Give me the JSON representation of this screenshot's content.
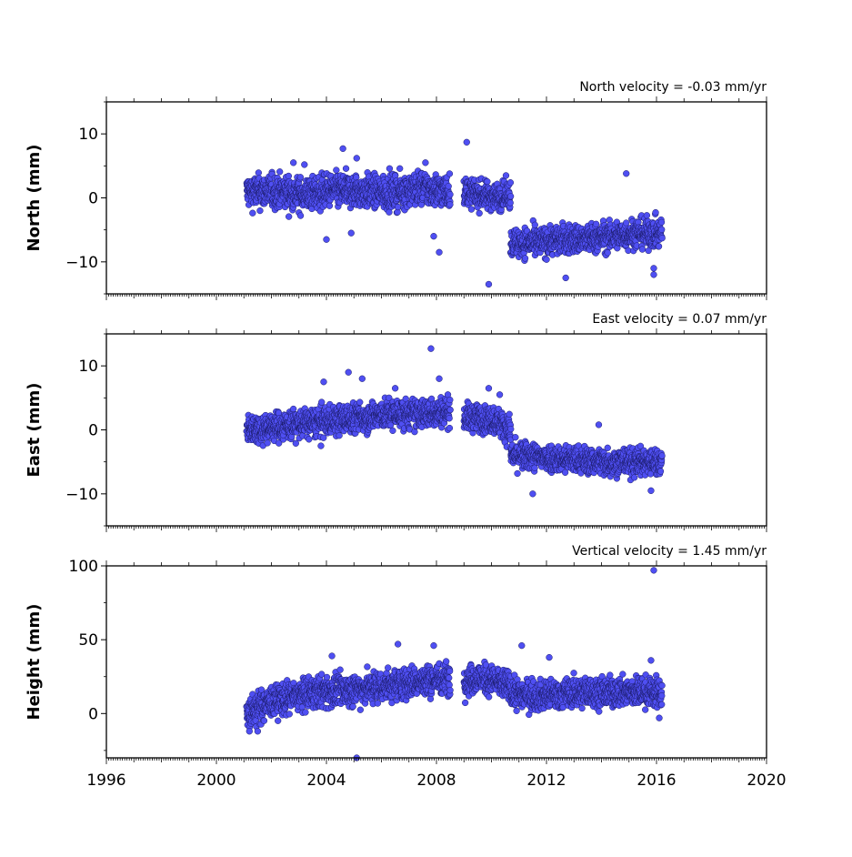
{
  "chart_data": [
    {
      "type": "scatter",
      "title": "North velocity = -0.03 mm/yr",
      "ylabel": "North (mm)",
      "xlim": [
        1996,
        2020
      ],
      "ylim": [
        -15,
        15
      ],
      "yticks": [
        10,
        0,
        -10
      ],
      "ytick_labels": [
        "10",
        "0",
        "−10"
      ],
      "marker_color": "#4f4ff2",
      "segments": [
        {
          "x": [
            2001.1,
            2008.5
          ],
          "level": [
            1.0,
            1.0,
            0.5,
            1.2,
            1.0,
            0.8,
            1.5,
            1.0
          ],
          "spread": 1.7
        },
        {
          "x": [
            2009.0,
            2010.7
          ],
          "level": [
            1.0,
            0.5,
            0.2,
            0.5
          ],
          "spread": 1.4
        },
        {
          "x": [
            2010.7,
            2016.2
          ],
          "level": [
            -7.0,
            -7.0,
            -6.5,
            -6.5,
            -6.0,
            -5.5,
            -5.5
          ],
          "spread": 1.5
        }
      ],
      "outliers": [
        {
          "x": 2002.8,
          "y": 5.5
        },
        {
          "x": 2003.2,
          "y": 5.2
        },
        {
          "x": 2004.0,
          "y": -6.5
        },
        {
          "x": 2004.6,
          "y": 7.7
        },
        {
          "x": 2004.9,
          "y": -5.5
        },
        {
          "x": 2005.1,
          "y": 6.2
        },
        {
          "x": 2007.6,
          "y": 5.5
        },
        {
          "x": 2008.1,
          "y": -8.5
        },
        {
          "x": 2007.9,
          "y": -6.0
        },
        {
          "x": 2009.1,
          "y": 8.7
        },
        {
          "x": 2009.9,
          "y": -13.5
        },
        {
          "x": 2012.7,
          "y": -12.5
        },
        {
          "x": 2014.9,
          "y": 3.8
        },
        {
          "x": 2015.9,
          "y": -12.0
        },
        {
          "x": 2015.9,
          "y": -11.0
        }
      ]
    },
    {
      "type": "scatter",
      "title": "East velocity = 0.07 mm/yr",
      "ylabel": "East (mm)",
      "xlim": [
        1996,
        2020
      ],
      "ylim": [
        -15,
        15
      ],
      "yticks": [
        10,
        0,
        -10
      ],
      "ytick_labels": [
        "10",
        "0",
        "−10"
      ],
      "marker_color": "#4f4ff2",
      "segments": [
        {
          "x": [
            2001.1,
            2008.5
          ],
          "level": [
            0.0,
            0.5,
            1.0,
            1.5,
            2.0,
            2.5,
            2.5,
            3.0
          ],
          "spread": 1.5
        },
        {
          "x": [
            2009.0,
            2010.7
          ],
          "level": [
            2.0,
            1.8,
            1.5,
            0.0
          ],
          "spread": 1.4
        },
        {
          "x": [
            2010.7,
            2016.2
          ],
          "level": [
            -4.0,
            -4.2,
            -4.5,
            -4.8,
            -5.0,
            -5.0,
            -5.0
          ],
          "spread": 1.4
        }
      ],
      "outliers": [
        {
          "x": 2007.8,
          "y": 12.7
        },
        {
          "x": 2004.8,
          "y": 9.0
        },
        {
          "x": 2005.3,
          "y": 8.0
        },
        {
          "x": 2008.1,
          "y": 8.0
        },
        {
          "x": 2003.9,
          "y": 7.5
        },
        {
          "x": 2009.9,
          "y": 6.5
        },
        {
          "x": 2010.3,
          "y": 5.5
        },
        {
          "x": 2011.5,
          "y": -10.0
        },
        {
          "x": 2015.8,
          "y": -9.5
        },
        {
          "x": 2013.9,
          "y": 0.8
        },
        {
          "x": 2003.8,
          "y": -2.5
        },
        {
          "x": 2006.5,
          "y": 6.5
        }
      ]
    },
    {
      "type": "scatter",
      "title": "Vertical velocity = 1.45 mm/yr",
      "ylabel": "Height (mm)",
      "xlim": [
        1996,
        2020
      ],
      "ylim": [
        -30,
        100
      ],
      "yticks": [
        100,
        50,
        0
      ],
      "ytick_labels": [
        "100",
        "50",
        "0"
      ],
      "xticks": [
        1996,
        2000,
        2004,
        2008,
        2012,
        2016,
        2020
      ],
      "xtick_labels": [
        "1996",
        "2000",
        "2004",
        "2008",
        "2012",
        "2016",
        "2020"
      ],
      "marker_color": "#4f4ff2",
      "segments": [
        {
          "x": [
            2001.1,
            2008.5
          ],
          "level": [
            0.0,
            8.0,
            12.0,
            15.0,
            16.0,
            18.0,
            20.0,
            22.0,
            24.0
          ],
          "spread": 7.0
        },
        {
          "x": [
            2009.0,
            2010.7
          ],
          "level": [
            22.0,
            24.0,
            22.0,
            18.0
          ],
          "spread": 6.5
        },
        {
          "x": [
            2010.7,
            2016.2
          ],
          "level": [
            14.0,
            12.0,
            13.0,
            15.0,
            14.0,
            15.0,
            14.0
          ],
          "spread": 6.5
        }
      ],
      "outliers": [
        {
          "x": 2015.9,
          "y": 97.0
        },
        {
          "x": 2004.2,
          "y": 39.0
        },
        {
          "x": 2006.6,
          "y": 47.0
        },
        {
          "x": 2007.9,
          "y": 46.0
        },
        {
          "x": 2011.1,
          "y": 46.0
        },
        {
          "x": 2001.5,
          "y": -12.0
        },
        {
          "x": 2001.2,
          "y": -12.0
        },
        {
          "x": 2005.1,
          "y": -30.0
        },
        {
          "x": 2012.1,
          "y": 38.0
        },
        {
          "x": 2015.8,
          "y": 36.0
        },
        {
          "x": 2016.1,
          "y": -3.0
        }
      ]
    }
  ]
}
